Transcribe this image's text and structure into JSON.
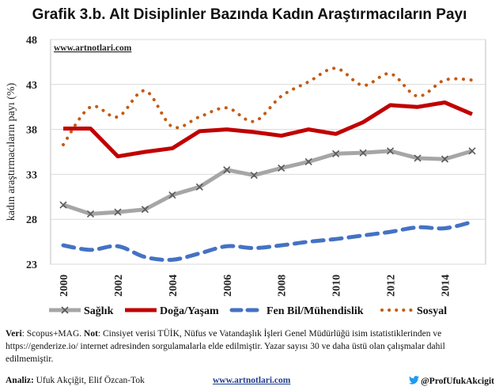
{
  "title": "Grafik 3.b. Alt Disiplinler Bazında Kadın Araştırmacıların Payı",
  "watermark": "www.artnotlari.com",
  "colors": {
    "saglik": "#a6a6a6",
    "doga": "#c00000",
    "fen": "#4472c4",
    "sosyal": "#c55a11",
    "grid": "#d9d9d9",
    "link": "#1f3b8c"
  },
  "chart_data": {
    "type": "line",
    "ylabel": "kadın araştırmacıların payı (%)",
    "ylim": [
      23,
      48
    ],
    "yticks": [
      23,
      28,
      33,
      38,
      43,
      48
    ],
    "xlim": [
      2000,
      2015
    ],
    "xticks": [
      2000,
      2002,
      2004,
      2006,
      2008,
      2010,
      2012,
      2014
    ],
    "grid": "horizontal",
    "legend": "bottom",
    "series": [
      {
        "name": "Sağlık",
        "style": "solid-x-markers",
        "color": "#a6a6a6",
        "x": [
          2000,
          2001,
          2002,
          2003,
          2004,
          2005,
          2006,
          2007,
          2008,
          2009,
          2010,
          2011,
          2012,
          2013,
          2014,
          2015
        ],
        "y": [
          29.6,
          28.6,
          28.8,
          29.1,
          30.7,
          31.6,
          33.5,
          32.9,
          33.7,
          34.4,
          35.3,
          35.4,
          35.6,
          34.8,
          34.7,
          35.6
        ]
      },
      {
        "name": "Doğa/Yaşam",
        "style": "solid",
        "color": "#c00000",
        "x": [
          2000,
          2001,
          2002,
          2003,
          2004,
          2005,
          2006,
          2007,
          2008,
          2009,
          2010,
          2011,
          2012,
          2013,
          2014,
          2015
        ],
        "y": [
          38.1,
          38.1,
          35.0,
          35.5,
          35.9,
          37.8,
          38.0,
          37.7,
          37.3,
          38.0,
          37.5,
          38.8,
          40.7,
          40.5,
          41.0,
          39.7
        ]
      },
      {
        "name": "Fen Bil/Mühendislik",
        "style": "dashed",
        "color": "#4472c4",
        "x": [
          2000,
          2001,
          2002,
          2003,
          2004,
          2005,
          2006,
          2007,
          2008,
          2009,
          2010,
          2011,
          2012,
          2013,
          2014,
          2015
        ],
        "y": [
          25.1,
          24.6,
          25.0,
          23.8,
          23.5,
          24.2,
          25.0,
          24.8,
          25.1,
          25.5,
          25.8,
          26.2,
          26.6,
          27.1,
          27.0,
          27.7
        ]
      },
      {
        "name": "Sosyal",
        "style": "dotted-curve",
        "color": "#c55a11",
        "x": [
          2000,
          2001,
          2002,
          2003,
          2004,
          2005,
          2006,
          2007,
          2008,
          2009,
          2010,
          2011,
          2012,
          2013,
          2014,
          2015
        ],
        "y": [
          36.3,
          40.5,
          39.4,
          42.3,
          38.3,
          39.4,
          40.4,
          38.9,
          41.7,
          43.3,
          44.8,
          42.9,
          44.2,
          41.7,
          43.5,
          43.5
        ]
      }
    ]
  },
  "note": {
    "veri_label": "Veri",
    "veri_text": ": Scopus+MAG. ",
    "not_label": "Not",
    "not_text": ": Cinsiyet verisi TÜİK, Nüfus ve Vatandaşlık İşleri Genel Müdürlüğü isim istatistiklerinden ve https://genderize.io/ internet adresinden sorgulamalarla elde edilmiştir. Yazar sayısı 30 ve daha üstü olan çalışmalar dahil edilmemiştir."
  },
  "credits": {
    "analiz_label": "Analiz:",
    "analiz_text": " Ufuk Akçiğit, Elif Özcan-Tok",
    "site": "www.artnotlari.com",
    "twitter_handle": "@ProfUfukAkcigit",
    "twitter_icon": "twitter-bird-icon"
  }
}
